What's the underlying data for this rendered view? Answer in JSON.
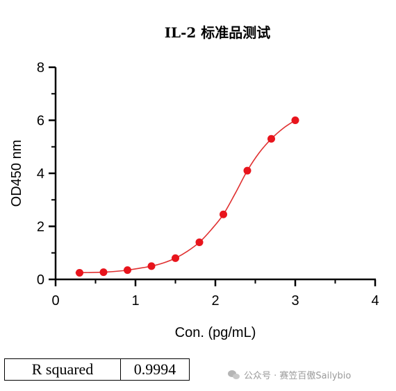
{
  "chart_data": {
    "type": "scatter",
    "title": "IL-2 标准品测试",
    "xlabel": "Con. (pg/mL)",
    "ylabel": "OD450 nm",
    "xlim": [
      0,
      4
    ],
    "ylim": [
      0,
      8
    ],
    "xticks": [
      0,
      1,
      2,
      3,
      4
    ],
    "yticks": [
      0,
      2,
      4,
      6,
      8
    ],
    "grid": false,
    "point_color": "#e8141c",
    "curve_color": "#e03030",
    "series": [
      {
        "x": [
          0.3,
          0.6,
          0.9,
          1.2,
          1.5,
          1.8,
          2.1,
          2.4,
          2.7,
          3.0
        ],
        "y": [
          0.25,
          0.27,
          0.35,
          0.5,
          0.8,
          1.4,
          2.45,
          4.1,
          5.3,
          6.0
        ]
      }
    ],
    "fit_curve": {
      "x": [
        0.25,
        0.45,
        0.65,
        0.85,
        1.05,
        1.2,
        1.35,
        1.5,
        1.65,
        1.8,
        1.95,
        2.1,
        2.25,
        2.4,
        2.55,
        2.7,
        2.85,
        3.0
      ],
      "y": [
        0.25,
        0.26,
        0.28,
        0.33,
        0.42,
        0.5,
        0.62,
        0.8,
        1.06,
        1.4,
        1.88,
        2.45,
        3.25,
        4.1,
        4.78,
        5.3,
        5.7,
        6.0
      ]
    }
  },
  "stats": {
    "label": "R squared",
    "value": "0.9994"
  },
  "watermark": {
    "text": "公众号 · 赛笠百傲Sailybio",
    "icon": "wechat-icon"
  }
}
